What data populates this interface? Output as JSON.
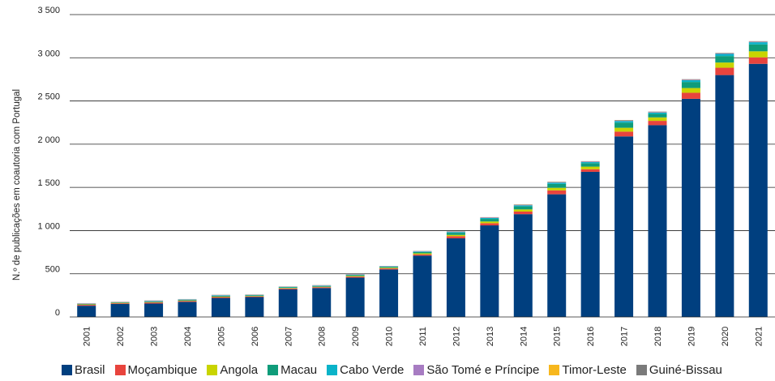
{
  "chart_data": {
    "type": "bar",
    "stacked": true,
    "title": "",
    "xlabel": "",
    "ylabel": "N.º de publicações em coautoria com Portugal",
    "ylim": [
      0,
      3500
    ],
    "yticks": [
      0,
      500,
      1000,
      1500,
      2000,
      2500,
      3000,
      3500
    ],
    "ytick_labels": [
      "0",
      "500",
      "1 000",
      "1 500",
      "2 000",
      "2 500",
      "3 000",
      "3 500"
    ],
    "grid": true,
    "legend_position": "bottom",
    "categories": [
      "2001",
      "2002",
      "2003",
      "2004",
      "2005",
      "2006",
      "2007",
      "2008",
      "2009",
      "2010",
      "2011",
      "2012",
      "2013",
      "2014",
      "2015",
      "2016",
      "2017",
      "2018",
      "2019",
      "2020",
      "2021"
    ],
    "series": [
      {
        "name": "Brasil",
        "color": "#003f7f",
        "values": [
          130,
          150,
          155,
          175,
          220,
          230,
          320,
          335,
          455,
          550,
          710,
          910,
          1060,
          1190,
          1420,
          1680,
          2090,
          2220,
          2525,
          2800,
          2930
        ]
      },
      {
        "name": "Moçambique",
        "color": "#e8443d",
        "values": [
          10,
          8,
          12,
          10,
          10,
          8,
          10,
          10,
          12,
          12,
          15,
          25,
          25,
          30,
          45,
          30,
          55,
          50,
          70,
          85,
          75
        ]
      },
      {
        "name": "Angola",
        "color": "#c9d400",
        "values": [
          5,
          5,
          5,
          5,
          6,
          5,
          5,
          5,
          8,
          8,
          12,
          15,
          20,
          25,
          30,
          30,
          45,
          40,
          55,
          60,
          70
        ]
      },
      {
        "name": "Macau",
        "color": "#0f9c7a",
        "values": [
          5,
          5,
          8,
          8,
          10,
          8,
          8,
          8,
          10,
          10,
          15,
          25,
          30,
          35,
          45,
          40,
          60,
          40,
          70,
          75,
          80
        ]
      },
      {
        "name": "Cabo Verde",
        "color": "#0ab3c9",
        "values": [
          2,
          2,
          4,
          3,
          5,
          4,
          4,
          5,
          5,
          5,
          6,
          8,
          10,
          12,
          15,
          12,
          18,
          15,
          20,
          25,
          25
        ]
      },
      {
        "name": "São Tomé e Príncipe",
        "color": "#a77cc2",
        "values": [
          5,
          3,
          5,
          3,
          3,
          2,
          3,
          3,
          5,
          3,
          4,
          5,
          5,
          5,
          5,
          5,
          5,
          5,
          5,
          5,
          5
        ]
      },
      {
        "name": "Timor-Leste",
        "color": "#f7b71d",
        "values": [
          1,
          1,
          1,
          1,
          1,
          1,
          1,
          1,
          1,
          1,
          1,
          1,
          2,
          2,
          2,
          2,
          2,
          2,
          2,
          2,
          2
        ]
      },
      {
        "name": "Guiné-Bissau",
        "color": "#7a7a7a",
        "values": [
          2,
          2,
          2,
          2,
          2,
          2,
          2,
          2,
          2,
          2,
          2,
          3,
          3,
          4,
          4,
          4,
          5,
          5,
          5,
          5,
          5
        ]
      }
    ]
  }
}
